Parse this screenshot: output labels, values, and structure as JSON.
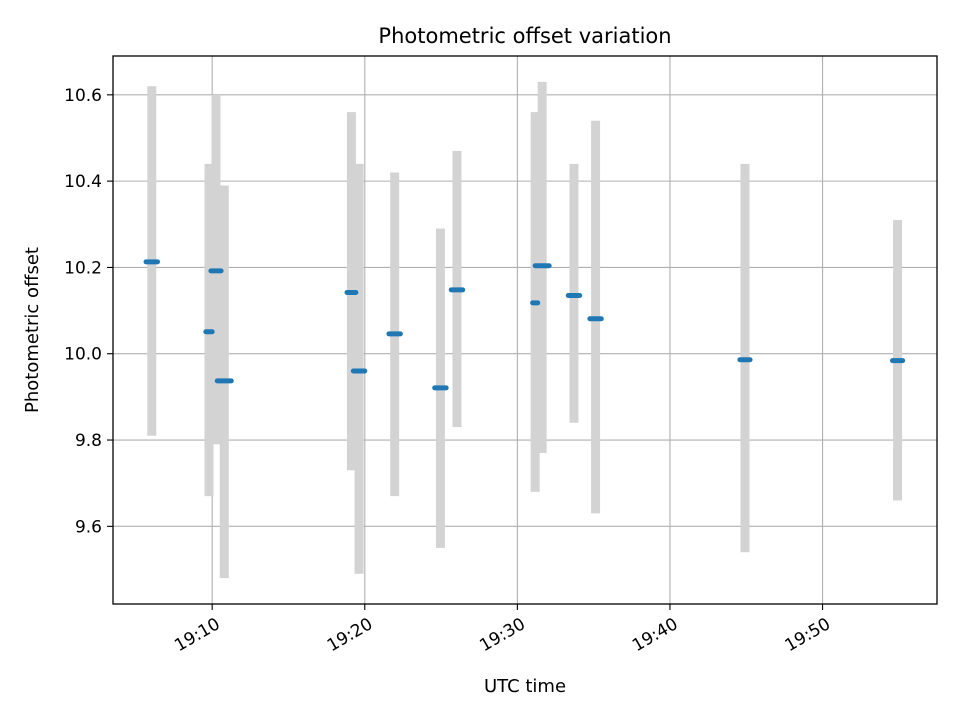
{
  "chart_data": {
    "type": "scatter",
    "title": "Photometric offset variation",
    "xlabel": "UTC time",
    "ylabel": "Photometric offset",
    "xlim": [
      "19:03:30",
      "19:57:30"
    ],
    "ylim": [
      9.42,
      10.69
    ],
    "x_ticks": [
      "19:10",
      "19:20",
      "19:30",
      "19:40",
      "19:50"
    ],
    "y_ticks": [
      "9.6",
      "9.8",
      "10.0",
      "10.2",
      "10.4",
      "10.6"
    ],
    "grid": true,
    "legend": "none",
    "series": [
      {
        "error_bar_color": "#d3d3d3",
        "marker_color": "#1f77b4",
        "points": [
          {
            "start": "19:05:40",
            "end": "19:06:25",
            "y": 10.213,
            "low": 9.81,
            "high": 10.62
          },
          {
            "start": "19:09:35",
            "end": "19:10:00",
            "y": 10.051,
            "low": 9.67,
            "high": 10.44
          },
          {
            "start": "19:09:55",
            "end": "19:10:35",
            "y": 10.192,
            "low": 9.79,
            "high": 10.6
          },
          {
            "start": "19:10:20",
            "end": "19:11:15",
            "y": 9.937,
            "low": 9.48,
            "high": 10.39
          },
          {
            "start": "19:18:50",
            "end": "19:19:25",
            "y": 10.142,
            "low": 9.73,
            "high": 10.56
          },
          {
            "start": "19:19:15",
            "end": "19:20:00",
            "y": 9.96,
            "low": 9.49,
            "high": 10.44
          },
          {
            "start": "19:21:35",
            "end": "19:22:20",
            "y": 10.046,
            "low": 9.67,
            "high": 10.42
          },
          {
            "start": "19:24:35",
            "end": "19:25:20",
            "y": 9.921,
            "low": 9.55,
            "high": 10.29
          },
          {
            "start": "19:25:40",
            "end": "19:26:25",
            "y": 10.148,
            "low": 9.83,
            "high": 10.47
          },
          {
            "start": "19:31:00",
            "end": "19:31:20",
            "y": 10.118,
            "low": 9.68,
            "high": 10.56
          },
          {
            "start": "19:31:10",
            "end": "19:32:05",
            "y": 10.204,
            "low": 9.77,
            "high": 10.63
          },
          {
            "start": "19:33:20",
            "end": "19:34:05",
            "y": 10.135,
            "low": 9.84,
            "high": 10.44
          },
          {
            "start": "19:34:45",
            "end": "19:35:30",
            "y": 10.081,
            "low": 9.63,
            "high": 10.54
          },
          {
            "start": "19:44:35",
            "end": "19:45:15",
            "y": 9.986,
            "low": 9.54,
            "high": 10.44
          },
          {
            "start": "19:54:35",
            "end": "19:55:15",
            "y": 9.984,
            "low": 9.66,
            "high": 10.31
          }
        ]
      }
    ]
  }
}
